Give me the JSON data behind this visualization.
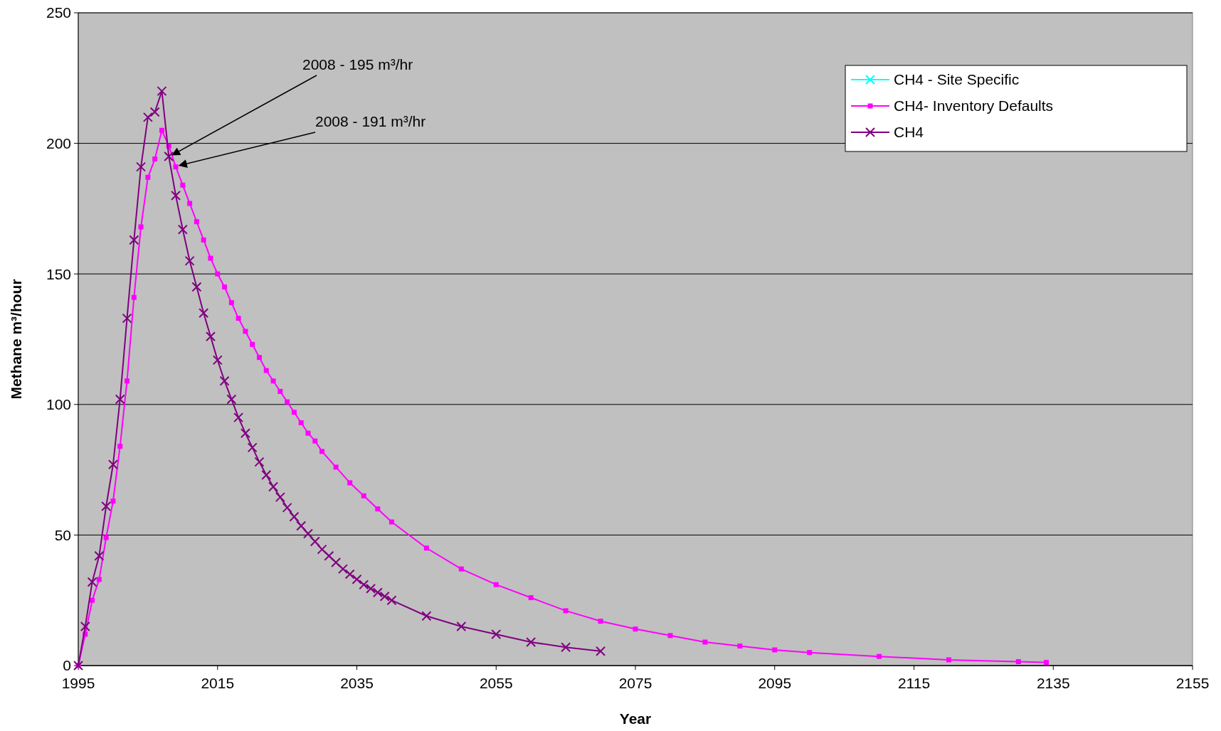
{
  "chart_data": {
    "type": "line",
    "xlabel": "Year",
    "ylabel": "Methane m³/hour",
    "xlim": [
      1995,
      2155
    ],
    "xticks": [
      1995,
      2015,
      2035,
      2055,
      2075,
      2095,
      2115,
      2135,
      2155
    ],
    "ylim": [
      0,
      250
    ],
    "yticks": [
      0,
      50,
      100,
      150,
      200,
      250
    ],
    "grid": "y",
    "legend": "top right",
    "annotations": [
      {
        "text": "2008 - 195 m³/hr",
        "x": 2008,
        "y": 195
      },
      {
        "text": "2008 - 191 m³/hr",
        "x": 2009,
        "y": 191
      }
    ],
    "series": [
      {
        "name": "CH4 - Site Specific",
        "color": "#00ffff",
        "marker": "cross"
      },
      {
        "name": "CH4- Inventory Defaults",
        "color": "#ff00ff",
        "marker": "square",
        "x": [
          1995,
          1996,
          1997,
          1998,
          1999,
          2000,
          2001,
          2002,
          2003,
          2004,
          2005,
          2006,
          2007,
          2008,
          2009,
          2010,
          2011,
          2012,
          2013,
          2014,
          2015,
          2016,
          2017,
          2018,
          2019,
          2020,
          2021,
          2022,
          2023,
          2024,
          2025,
          2026,
          2027,
          2028,
          2029,
          2030,
          2032,
          2034,
          2036,
          2038,
          2040,
          2045,
          2050,
          2055,
          2060,
          2065,
          2070,
          2075,
          2080,
          2085,
          2090,
          2095,
          2100,
          2110,
          2120,
          2130,
          2134
        ],
        "values": [
          0,
          12,
          25,
          33,
          49,
          63,
          84,
          109,
          141,
          168,
          187,
          194,
          205,
          199,
          191,
          184,
          177,
          170,
          163,
          156,
          150,
          145,
          139,
          133,
          128,
          123,
          118,
          113,
          109,
          105,
          101,
          97,
          93,
          89,
          86,
          82,
          76,
          70,
          65,
          60,
          55,
          45,
          37,
          31,
          26,
          21,
          17,
          14,
          11.5,
          9,
          7.5,
          6,
          5,
          3.5,
          2.2,
          1.5,
          1.2
        ]
      },
      {
        "name": "CH4",
        "color": "#800080",
        "marker": "cross",
        "x": [
          1995,
          1996,
          1997,
          1998,
          1999,
          2000,
          2001,
          2002,
          2003,
          2004,
          2005,
          2006,
          2007,
          2008,
          2009,
          2010,
          2011,
          2012,
          2013,
          2014,
          2015,
          2016,
          2017,
          2018,
          2019,
          2020,
          2021,
          2022,
          2023,
          2024,
          2025,
          2026,
          2027,
          2028,
          2029,
          2030,
          2031,
          2032,
          2033,
          2034,
          2035,
          2036,
          2037,
          2038,
          2039,
          2040,
          2045,
          2050,
          2055,
          2060,
          2065,
          2070
        ],
        "values": [
          0,
          15,
          32,
          42,
          61,
          77,
          102,
          133,
          163,
          191,
          210,
          212,
          220,
          195,
          180,
          167,
          155,
          145,
          135,
          126,
          117,
          109,
          102,
          95,
          89,
          83.5,
          78,
          73,
          68.5,
          64.5,
          60.5,
          57,
          53.5,
          50.5,
          47.5,
          44.5,
          42,
          39.5,
          37,
          35,
          33,
          31,
          29.5,
          28,
          26.5,
          25,
          19,
          15,
          12,
          9,
          7,
          5.5
        ]
      }
    ]
  }
}
